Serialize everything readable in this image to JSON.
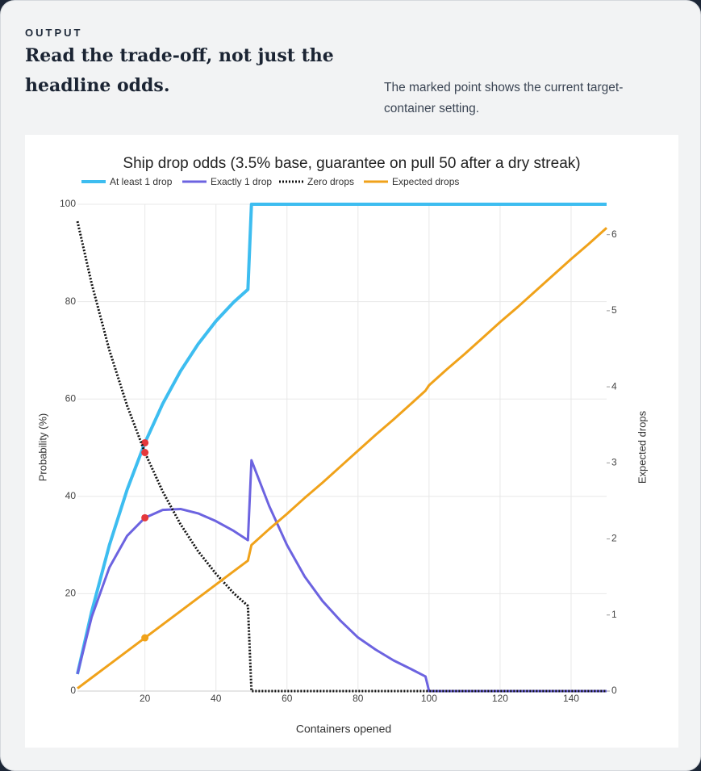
{
  "section_label": "OUTPUT",
  "heading": "Read the trade-off, not just the headline odds.",
  "note": "The marked point shows the current target-container setting.",
  "chart_data": {
    "type": "line",
    "title": "Ship drop odds (3.5% base, guarantee on pull 50 after a dry streak)",
    "x_label": "Containers opened",
    "y_label": "Probability (%)",
    "y2_label": "Expected drops",
    "x": [
      1,
      5,
      10,
      15,
      20,
      25,
      30,
      35,
      40,
      45,
      49,
      50,
      55,
      60,
      65,
      70,
      75,
      80,
      85,
      90,
      95,
      99,
      100,
      105,
      110,
      115,
      120,
      125,
      130,
      135,
      140,
      145,
      150
    ],
    "series": [
      {
        "name": "At least 1 drop",
        "color": "#3dbdf0",
        "width": 4,
        "dash": "solid",
        "values": [
          3.5,
          16.3,
          30.0,
          41.4,
          51.0,
          59.0,
          65.7,
          71.3,
          76.0,
          79.9,
          82.5,
          100,
          100,
          100,
          100,
          100,
          100,
          100,
          100,
          100,
          100,
          100,
          100,
          100,
          100,
          100,
          100,
          100,
          100,
          100,
          100,
          100,
          100
        ]
      },
      {
        "name": "Exactly 1 drop",
        "color": "#6c63e0",
        "width": 3,
        "dash": "solid",
        "values": [
          3.5,
          15.2,
          25.4,
          31.9,
          35.6,
          37.2,
          37.4,
          36.5,
          34.9,
          32.9,
          31.0,
          47.4,
          38.0,
          30.0,
          23.5,
          18.5,
          14.5,
          11.0,
          8.5,
          6.3,
          4.5,
          3.0,
          0,
          0,
          0,
          0,
          0,
          0,
          0,
          0,
          0,
          0,
          0
        ]
      },
      {
        "name": "Zero drops",
        "color": "#111111",
        "width": 3,
        "dash": "dot",
        "values": [
          96.5,
          83.7,
          70.0,
          58.6,
          49.0,
          41.0,
          34.3,
          28.7,
          24.1,
          20.1,
          17.5,
          0,
          0,
          0,
          0,
          0,
          0,
          0,
          0,
          0,
          0,
          0,
          0,
          0,
          0,
          0,
          0,
          0,
          0,
          0,
          0,
          0,
          0
        ]
      },
      {
        "name": "Expected drops",
        "color": "#f0a21a",
        "width": 3,
        "dash": "solid",
        "axis": "y2",
        "values": [
          0.035,
          0.175,
          0.35,
          0.525,
          0.7,
          0.875,
          1.05,
          1.225,
          1.4,
          1.575,
          1.715,
          1.92,
          2.13,
          2.33,
          2.54,
          2.74,
          2.95,
          3.16,
          3.37,
          3.57,
          3.78,
          3.95,
          4.02,
          4.23,
          4.43,
          4.64,
          4.85,
          5.05,
          5.26,
          5.47,
          5.68,
          5.88,
          6.09
        ]
      }
    ],
    "highlight": {
      "x": 20,
      "color": "#e5383b"
    },
    "xlim": [
      1,
      150
    ],
    "xticks": [
      20,
      40,
      60,
      80,
      100,
      120,
      140
    ],
    "ylim": [
      0,
      100
    ],
    "yticks": [
      0,
      20,
      40,
      60,
      80,
      100
    ],
    "y2lim": [
      0,
      6.4
    ],
    "y2ticks": [
      0,
      1,
      2,
      3,
      4,
      5,
      6
    ],
    "grid": true
  }
}
